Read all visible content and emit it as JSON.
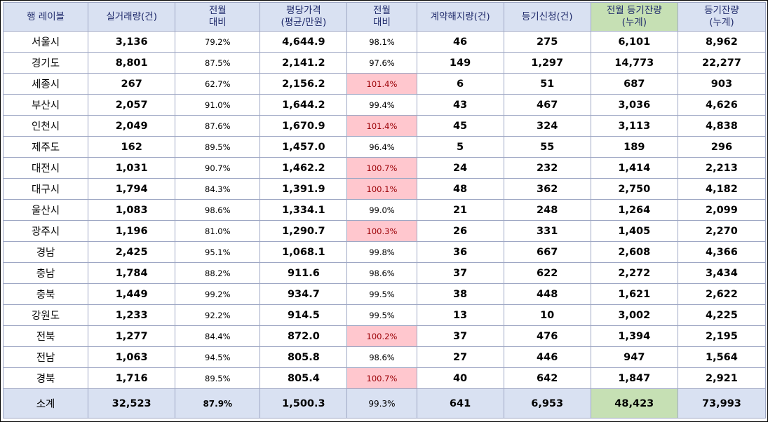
{
  "headers": [
    {
      "line1": "행 레이블",
      "line2": ""
    },
    {
      "line1": "실거래량(건)",
      "line2": ""
    },
    {
      "line1": "전월",
      "line2": "대비"
    },
    {
      "line1": "평당가격",
      "line2": "(평균/만원)"
    },
    {
      "line1": "전월",
      "line2": "대비"
    },
    {
      "line1": "계약해지량(건)",
      "line2": ""
    },
    {
      "line1": "등기신청(건)",
      "line2": ""
    },
    {
      "line1": "전월 등기잔량",
      "line2": "(누계)"
    },
    {
      "line1": "등기잔량",
      "line2": "(누계)"
    }
  ],
  "rows": [
    {
      "region": "서울시",
      "volume": "3,136",
      "vol_mom": "79.2%",
      "price": "4,644.9",
      "price_mom": "98.1%",
      "cancel": "46",
      "reg": "275",
      "prev_remain": "6,101",
      "remain": "8,962",
      "price_up": false
    },
    {
      "region": "경기도",
      "volume": "8,801",
      "vol_mom": "87.5%",
      "price": "2,141.2",
      "price_mom": "97.6%",
      "cancel": "149",
      "reg": "1,297",
      "prev_remain": "14,773",
      "remain": "22,277",
      "price_up": false
    },
    {
      "region": "세종시",
      "volume": "267",
      "vol_mom": "62.7%",
      "price": "2,156.2",
      "price_mom": "101.4%",
      "cancel": "6",
      "reg": "51",
      "prev_remain": "687",
      "remain": "903",
      "price_up": true
    },
    {
      "region": "부산시",
      "volume": "2,057",
      "vol_mom": "91.0%",
      "price": "1,644.2",
      "price_mom": "99.4%",
      "cancel": "43",
      "reg": "467",
      "prev_remain": "3,036",
      "remain": "4,626",
      "price_up": false
    },
    {
      "region": "인천시",
      "volume": "2,049",
      "vol_mom": "87.6%",
      "price": "1,670.9",
      "price_mom": "101.4%",
      "cancel": "45",
      "reg": "324",
      "prev_remain": "3,113",
      "remain": "4,838",
      "price_up": true
    },
    {
      "region": "제주도",
      "volume": "162",
      "vol_mom": "89.5%",
      "price": "1,457.0",
      "price_mom": "96.4%",
      "cancel": "5",
      "reg": "55",
      "prev_remain": "189",
      "remain": "296",
      "price_up": false
    },
    {
      "region": "대전시",
      "volume": "1,031",
      "vol_mom": "90.7%",
      "price": "1,462.2",
      "price_mom": "100.7%",
      "cancel": "24",
      "reg": "232",
      "prev_remain": "1,414",
      "remain": "2,213",
      "price_up": true
    },
    {
      "region": "대구시",
      "volume": "1,794",
      "vol_mom": "84.3%",
      "price": "1,391.9",
      "price_mom": "100.1%",
      "cancel": "48",
      "reg": "362",
      "prev_remain": "2,750",
      "remain": "4,182",
      "price_up": true
    },
    {
      "region": "울산시",
      "volume": "1,083",
      "vol_mom": "98.6%",
      "price": "1,334.1",
      "price_mom": "99.0%",
      "cancel": "21",
      "reg": "248",
      "prev_remain": "1,264",
      "remain": "2,099",
      "price_up": false
    },
    {
      "region": "광주시",
      "volume": "1,196",
      "vol_mom": "81.0%",
      "price": "1,290.7",
      "price_mom": "100.3%",
      "cancel": "26",
      "reg": "331",
      "prev_remain": "1,405",
      "remain": "2,270",
      "price_up": true
    },
    {
      "region": "경남",
      "volume": "2,425",
      "vol_mom": "95.1%",
      "price": "1,068.1",
      "price_mom": "99.8%",
      "cancel": "36",
      "reg": "667",
      "prev_remain": "2,608",
      "remain": "4,366",
      "price_up": false
    },
    {
      "region": "충남",
      "volume": "1,784",
      "vol_mom": "88.2%",
      "price": "911.6",
      "price_mom": "98.6%",
      "cancel": "37",
      "reg": "622",
      "prev_remain": "2,272",
      "remain": "3,434",
      "price_up": false
    },
    {
      "region": "충북",
      "volume": "1,449",
      "vol_mom": "99.2%",
      "price": "934.7",
      "price_mom": "99.5%",
      "cancel": "38",
      "reg": "448",
      "prev_remain": "1,621",
      "remain": "2,622",
      "price_up": false
    },
    {
      "region": "강원도",
      "volume": "1,233",
      "vol_mom": "92.2%",
      "price": "914.5",
      "price_mom": "99.5%",
      "cancel": "13",
      "reg": "10",
      "prev_remain": "3,002",
      "remain": "4,225",
      "price_up": false
    },
    {
      "region": "전북",
      "volume": "1,277",
      "vol_mom": "84.4%",
      "price": "872.0",
      "price_mom": "100.2%",
      "cancel": "37",
      "reg": "476",
      "prev_remain": "1,394",
      "remain": "2,195",
      "price_up": true
    },
    {
      "region": "전남",
      "volume": "1,063",
      "vol_mom": "94.5%",
      "price": "805.8",
      "price_mom": "98.6%",
      "cancel": "27",
      "reg": "446",
      "prev_remain": "947",
      "remain": "1,564",
      "price_up": false
    },
    {
      "region": "경북",
      "volume": "1,716",
      "vol_mom": "89.5%",
      "price": "805.4",
      "price_mom": "100.7%",
      "cancel": "40",
      "reg": "642",
      "prev_remain": "1,847",
      "remain": "2,921",
      "price_up": true
    }
  ],
  "total": {
    "region": "소계",
    "volume": "32,523",
    "vol_mom": "87.9%",
    "price": "1,500.3",
    "price_mom": "99.3%",
    "cancel": "641",
    "reg": "6,953",
    "prev_remain": "48,423",
    "remain": "73,993"
  },
  "colors": {
    "header_bg": "#d9e1f2",
    "header_text": "#1f2a6b",
    "highlight_green": "#c6e0b4",
    "increase_bg": "#ffc7ce",
    "increase_text": "#9c0006",
    "border": "#9ea7c4"
  }
}
